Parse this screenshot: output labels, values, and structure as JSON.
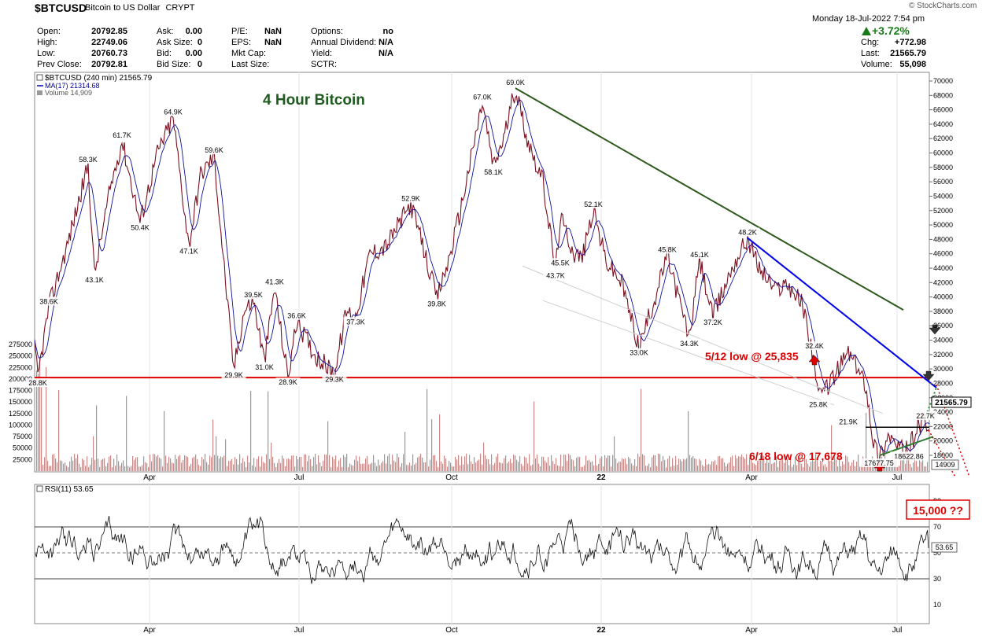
{
  "header": {
    "symbol": "$BTCUSD",
    "description": "Bitcoin to US Dollar",
    "exchange": "CRYPT",
    "brand": "© StockCharts.com",
    "datetime": "Monday  18-Jul-2022  7:54 pm",
    "change_pct": "+3.72%",
    "quote": [
      {
        "label": "Open:",
        "value": "20792.85"
      },
      {
        "label": "High:",
        "value": "22749.06"
      },
      {
        "label": "Low:",
        "value": "20760.73"
      },
      {
        "label": "Prev Close:",
        "value": "20792.81"
      },
      {
        "label": "Ask:",
        "value": "0.00"
      },
      {
        "label": "Ask Size:",
        "value": "0"
      },
      {
        "label": "Bid:",
        "value": "0.00"
      },
      {
        "label": "Bid Size:",
        "value": "0"
      },
      {
        "label": "P/E:",
        "value": "NaN"
      },
      {
        "label": "EPS:",
        "value": "NaN"
      },
      {
        "label": "Mkt Cap:",
        "value": ""
      },
      {
        "label": "Last Size:",
        "value": ""
      },
      {
        "label": "Options:",
        "value": "no"
      },
      {
        "label": "Annual Dividend:",
        "value": "N/A"
      },
      {
        "label": "Yield:",
        "value": "N/A"
      },
      {
        "label": "SCTR:",
        "value": ""
      },
      {
        "label": "Chg:",
        "value": "+772.98"
      },
      {
        "label": "Last:",
        "value": "21565.79"
      },
      {
        "label": "Volume:",
        "value": "55,098"
      }
    ]
  },
  "chart_data": [
    {
      "type": "line",
      "title": "4 Hour Bitcoin",
      "legend": [
        "$BTCUSD (240 min) 21565.79",
        "MA(17) 21314.68",
        "Volume 14,909"
      ],
      "x_ticks": [
        "Apr",
        "Jul",
        "Oct",
        "22",
        "Apr",
        "Jul"
      ],
      "price_ticks": [
        18000,
        20000,
        22000,
        24000,
        26000,
        28000,
        30000,
        32000,
        34000,
        36000,
        38000,
        40000,
        42000,
        44000,
        46000,
        48000,
        50000,
        52000,
        54000,
        56000,
        58000,
        60000,
        62000,
        64000,
        66000,
        68000,
        70000
      ],
      "volume_ticks": [
        25000,
        50000,
        75000,
        100000,
        125000,
        150000,
        175000,
        200000,
        225000,
        250000,
        275000
      ],
      "price_label": "21565.79",
      "volume_label": "14909",
      "pivots": [
        {
          "label": "28.8K",
          "value": 28800
        },
        {
          "label": "38.6K",
          "value": 38600
        },
        {
          "label": "58.3K",
          "value": 58300
        },
        {
          "label": "43.1K",
          "value": 43100
        },
        {
          "label": "61.7K",
          "value": 61700
        },
        {
          "label": "50.4K",
          "value": 50400
        },
        {
          "label": "64.9K",
          "value": 64900
        },
        {
          "label": "47.1K",
          "value": 47100
        },
        {
          "label": "59.6K",
          "value": 59600
        },
        {
          "label": "29.9K",
          "value": 29900
        },
        {
          "label": "39.5K",
          "value": 39500
        },
        {
          "label": "31.0K",
          "value": 31000
        },
        {
          "label": "41.3K",
          "value": 41300
        },
        {
          "label": "28.9K",
          "value": 28900
        },
        {
          "label": "36.6K",
          "value": 36600
        },
        {
          "label": "29.3K",
          "value": 29300
        },
        {
          "label": "37.3K",
          "value": 37300
        },
        {
          "label": "52.9K",
          "value": 52900
        },
        {
          "label": "39.8K",
          "value": 39800
        },
        {
          "label": "67.0K",
          "value": 67000
        },
        {
          "label": "58.1K",
          "value": 58100
        },
        {
          "label": "69.0K",
          "value": 69000
        },
        {
          "label": "43.7K",
          "value": 43700
        },
        {
          "label": "45.5K",
          "value": 45500
        },
        {
          "label": "52.1K",
          "value": 52100
        },
        {
          "label": "33.0K",
          "value": 33000
        },
        {
          "label": "45.8K",
          "value": 45800
        },
        {
          "label": "34.3K",
          "value": 34300
        },
        {
          "label": "45.1K",
          "value": 45100
        },
        {
          "label": "37.2K",
          "value": 37200
        },
        {
          "label": "48.2K",
          "value": 48200
        },
        {
          "label": "32.4K",
          "value": 32400
        },
        {
          "label": "25.8K",
          "value": 25800
        },
        {
          "label": "21.9K",
          "value": 21900
        },
        {
          "label": "22.7K",
          "value": 22700
        },
        {
          "label": "18622.86",
          "value": 18622.86
        },
        {
          "label": "17677.75",
          "value": 17677.75
        }
      ],
      "annotations": [
        {
          "text": "5/12 low @ 25,835",
          "color": "#dd0000"
        },
        {
          "text": "6/18 low @ 17,678",
          "color": "#dd0000"
        }
      ],
      "support_level": 28800
    },
    {
      "type": "line",
      "legend": [
        "RSI(11) 53.65"
      ],
      "y_ticks": [
        10,
        30,
        50,
        70,
        90
      ],
      "ylim": [
        0,
        100
      ],
      "value_label": "53.65",
      "annotation": "15,000 ??"
    }
  ]
}
